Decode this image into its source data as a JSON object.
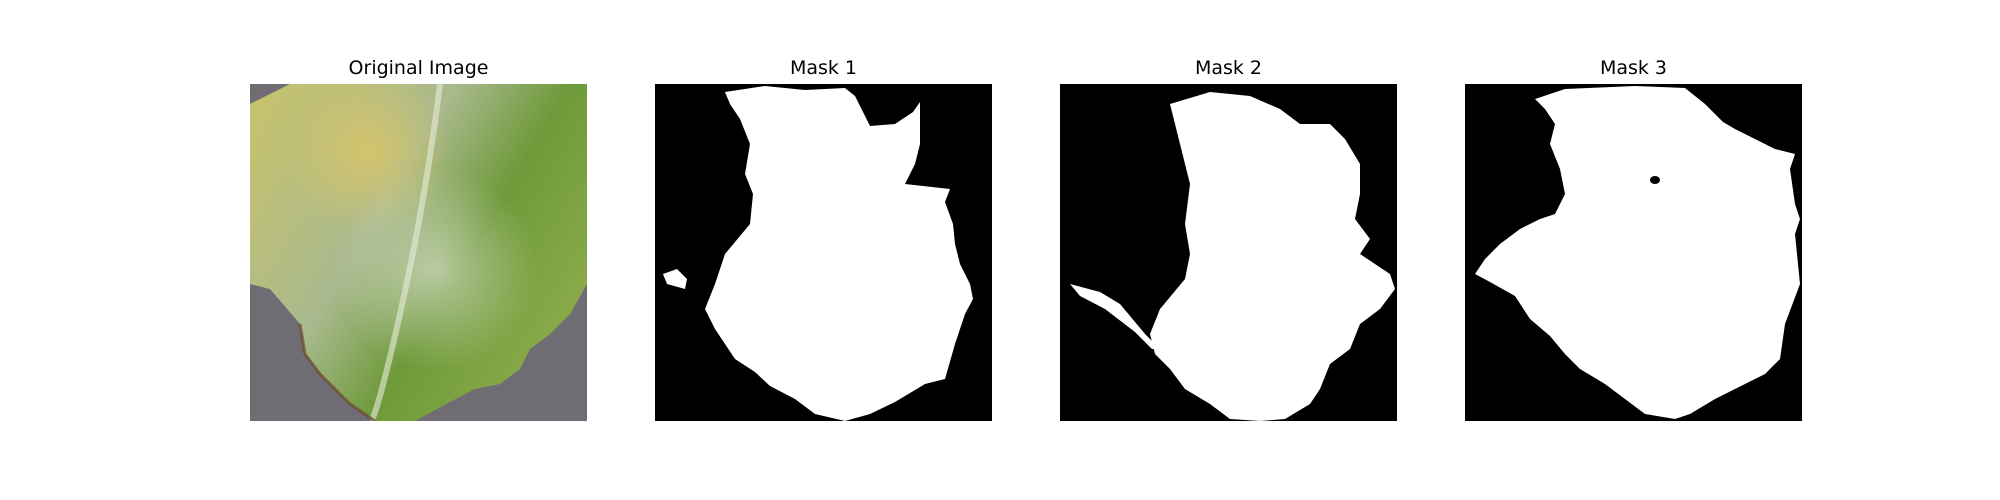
{
  "panels": [
    {
      "title": "Original Image"
    },
    {
      "title": "Mask 1"
    },
    {
      "title": "Mask 2"
    },
    {
      "title": "Mask 3"
    }
  ],
  "colors": {
    "mask_background": "#000000",
    "mask_foreground": "#ffffff",
    "leaf_yellow": "#c9c36a",
    "leaf_green": "#6e9a3a",
    "leaf_pale": "#a9b98e",
    "surface_gray": "#6f6c74"
  }
}
